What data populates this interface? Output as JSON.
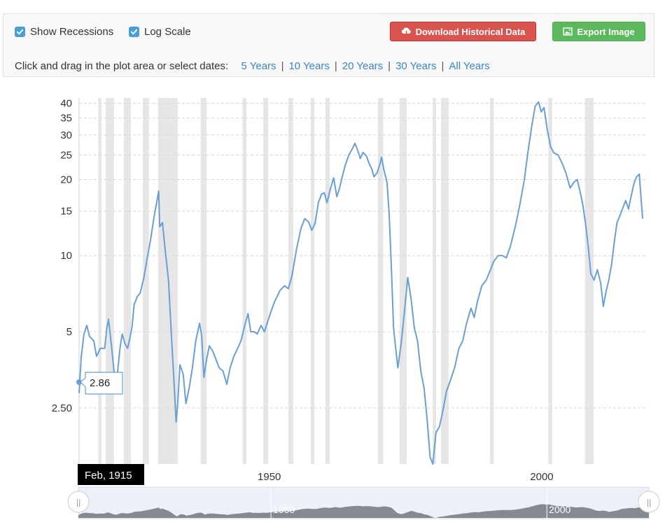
{
  "controls": {
    "show_recessions": {
      "label": "Show Recessions",
      "checked": true
    },
    "log_scale": {
      "label": "Log Scale",
      "checked": true
    },
    "download_button": "Download Historical Data",
    "export_button": "Export Image",
    "date_prompt": "Click and drag in the plot area or select dates:",
    "ranges": [
      "5 Years",
      "10 Years",
      "20 Years",
      "30 Years",
      "All Years"
    ]
  },
  "tooltip": {
    "date": "Feb, 1915",
    "value": "2.86"
  },
  "colors": {
    "line": "#6a9fd4",
    "recession": "#e6e6e6",
    "download": "#d9534f",
    "export": "#5cb85c",
    "link": "#3a87c8",
    "checkbox": "#4b9fd5"
  },
  "chart_data": {
    "type": "line",
    "title": "",
    "xlabel": "",
    "ylabel": "",
    "log_scale": true,
    "xlim": [
      1915.1,
      2018.5
    ],
    "ylim": [
      1.5,
      42
    ],
    "y_ticks": [
      {
        "value": 2.5,
        "label": "2.50"
      },
      {
        "value": 5,
        "label": "5"
      },
      {
        "value": 10,
        "label": "10"
      },
      {
        "value": 15,
        "label": "15"
      },
      {
        "value": 20,
        "label": "20"
      },
      {
        "value": 25,
        "label": "25"
      },
      {
        "value": 30,
        "label": "30"
      },
      {
        "value": 35,
        "label": "35"
      },
      {
        "value": 40,
        "label": "40"
      }
    ],
    "x_ticks": [
      {
        "value": 1950,
        "label": "1950"
      },
      {
        "value": 2000,
        "label": "2000"
      }
    ],
    "navigator_labels": [
      {
        "value": 1950,
        "label": "1950"
      },
      {
        "value": 2000,
        "label": "2000"
      }
    ],
    "recessions": [
      [
        1918.6,
        1919.2
      ],
      [
        1920.0,
        1921.5
      ],
      [
        1923.3,
        1924.6
      ],
      [
        1926.8,
        1927.9
      ],
      [
        1929.6,
        1933.2
      ],
      [
        1937.4,
        1938.5
      ],
      [
        1945.1,
        1945.8
      ],
      [
        1948.9,
        1949.8
      ],
      [
        1953.5,
        1954.4
      ],
      [
        1957.6,
        1958.3
      ],
      [
        1960.3,
        1961.1
      ],
      [
        1969.9,
        1970.9
      ],
      [
        1973.9,
        1975.2
      ],
      [
        1980.0,
        1980.6
      ],
      [
        1981.5,
        1982.9
      ],
      [
        1990.5,
        1991.2
      ],
      [
        2001.2,
        2001.9
      ],
      [
        2007.9,
        2009.5
      ]
    ],
    "series": [
      {
        "values": [
          [
            1915.1,
            2.86
          ],
          [
            1915.5,
            4.0
          ],
          [
            1916.0,
            4.9
          ],
          [
            1916.5,
            5.3
          ],
          [
            1917.0,
            4.8
          ],
          [
            1917.8,
            4.6
          ],
          [
            1918.3,
            4.0
          ],
          [
            1919.0,
            4.3
          ],
          [
            1919.8,
            4.3
          ],
          [
            1920.2,
            5.2
          ],
          [
            1920.5,
            5.6
          ],
          [
            1921.0,
            4.5
          ],
          [
            1921.5,
            3.5
          ],
          [
            1922.0,
            3.2
          ],
          [
            1922.6,
            4.3
          ],
          [
            1923.0,
            4.9
          ],
          [
            1923.5,
            4.5
          ],
          [
            1924.0,
            4.3
          ],
          [
            1924.4,
            4.7
          ],
          [
            1924.8,
            5.2
          ],
          [
            1925.2,
            6.4
          ],
          [
            1925.8,
            6.9
          ],
          [
            1926.3,
            7.1
          ],
          [
            1927.0,
            8.2
          ],
          [
            1927.6,
            9.8
          ],
          [
            1928.2,
            11.5
          ],
          [
            1928.8,
            14.0
          ],
          [
            1929.4,
            16.5
          ],
          [
            1929.7,
            18.0
          ],
          [
            1929.9,
            13.0
          ],
          [
            1930.4,
            13.5
          ],
          [
            1930.9,
            10.5
          ],
          [
            1931.5,
            8.0
          ],
          [
            1932.0,
            5.0
          ],
          [
            1932.5,
            3.2
          ],
          [
            1932.9,
            2.2
          ],
          [
            1933.2,
            2.6
          ],
          [
            1933.6,
            3.7
          ],
          [
            1934.2,
            3.4
          ],
          [
            1934.7,
            2.6
          ],
          [
            1935.3,
            3.0
          ],
          [
            1935.9,
            3.6
          ],
          [
            1936.5,
            4.6
          ],
          [
            1937.2,
            5.4
          ],
          [
            1937.6,
            4.8
          ],
          [
            1938.0,
            3.3
          ],
          [
            1938.5,
            3.9
          ],
          [
            1939.0,
            4.4
          ],
          [
            1939.6,
            4.2
          ],
          [
            1940.2,
            3.9
          ],
          [
            1940.8,
            3.6
          ],
          [
            1941.5,
            3.5
          ],
          [
            1942.2,
            3.1
          ],
          [
            1942.8,
            3.6
          ],
          [
            1943.5,
            4.0
          ],
          [
            1944.2,
            4.3
          ],
          [
            1944.8,
            4.6
          ],
          [
            1945.5,
            5.3
          ],
          [
            1946.1,
            5.9
          ],
          [
            1946.6,
            5.0
          ],
          [
            1947.2,
            5.0
          ],
          [
            1947.8,
            4.9
          ],
          [
            1948.5,
            5.3
          ],
          [
            1949.1,
            5.0
          ],
          [
            1949.6,
            5.4
          ],
          [
            1950.3,
            6.0
          ],
          [
            1951.0,
            6.6
          ],
          [
            1952.0,
            7.3
          ],
          [
            1952.8,
            7.6
          ],
          [
            1953.5,
            7.4
          ],
          [
            1954.2,
            8.4
          ],
          [
            1955.0,
            10.6
          ],
          [
            1955.8,
            12.8
          ],
          [
            1956.5,
            14.0
          ],
          [
            1957.2,
            13.6
          ],
          [
            1957.8,
            12.6
          ],
          [
            1958.4,
            13.4
          ],
          [
            1959.0,
            16.2
          ],
          [
            1959.6,
            17.5
          ],
          [
            1960.1,
            17.7
          ],
          [
            1960.6,
            16.2
          ],
          [
            1961.2,
            18.3
          ],
          [
            1961.8,
            20.3
          ],
          [
            1962.4,
            17.1
          ],
          [
            1962.9,
            18.5
          ],
          [
            1963.5,
            21.0
          ],
          [
            1964.0,
            23.0
          ],
          [
            1964.6,
            25.0
          ],
          [
            1965.3,
            26.6
          ],
          [
            1965.7,
            27.8
          ],
          [
            1966.2,
            26.2
          ],
          [
            1966.7,
            24.2
          ],
          [
            1967.2,
            25.6
          ],
          [
            1967.8,
            24.8
          ],
          [
            1968.3,
            23.2
          ],
          [
            1968.8,
            22.0
          ],
          [
            1969.2,
            20.5
          ],
          [
            1969.8,
            21.3
          ],
          [
            1970.3,
            23.0
          ],
          [
            1970.6,
            24.5
          ],
          [
            1971.0,
            22.0
          ],
          [
            1971.6,
            19.5
          ],
          [
            1972.0,
            14.5
          ],
          [
            1972.4,
            9.0
          ],
          [
            1972.8,
            5.2
          ],
          [
            1973.2,
            4.3
          ],
          [
            1973.6,
            3.6
          ],
          [
            1974.2,
            4.5
          ],
          [
            1974.8,
            6.0
          ],
          [
            1975.4,
            8.2
          ],
          [
            1976.0,
            6.8
          ],
          [
            1976.6,
            5.2
          ],
          [
            1977.2,
            4.6
          ],
          [
            1977.8,
            3.5
          ],
          [
            1978.4,
            3.0
          ],
          [
            1979.0,
            2.2
          ],
          [
            1979.5,
            1.6
          ],
          [
            1980.0,
            1.5
          ],
          [
            1980.6,
            2.0
          ],
          [
            1981.2,
            2.1
          ],
          [
            1981.8,
            2.4
          ],
          [
            1982.5,
            2.9
          ],
          [
            1983.2,
            3.2
          ],
          [
            1984.0,
            3.6
          ],
          [
            1984.8,
            4.3
          ],
          [
            1985.5,
            4.6
          ],
          [
            1986.2,
            5.4
          ],
          [
            1987.0,
            6.2
          ],
          [
            1987.6,
            5.7
          ],
          [
            1988.2,
            6.6
          ],
          [
            1989.0,
            7.6
          ],
          [
            1989.8,
            8.0
          ],
          [
            1990.5,
            8.7
          ],
          [
            1991.2,
            9.5
          ],
          [
            1992.0,
            10.0
          ],
          [
            1992.8,
            10.0
          ],
          [
            1993.5,
            9.8
          ],
          [
            1994.3,
            11.0
          ],
          [
            1995.2,
            13.2
          ],
          [
            1996.0,
            16.0
          ],
          [
            1996.8,
            20.0
          ],
          [
            1997.5,
            26.0
          ],
          [
            1998.2,
            33.0
          ],
          [
            1998.8,
            39.0
          ],
          [
            1999.4,
            40.5
          ],
          [
            1999.9,
            37.0
          ],
          [
            2000.4,
            38.5
          ],
          [
            2001.0,
            31.5
          ],
          [
            2001.6,
            27.0
          ],
          [
            2002.2,
            25.5
          ],
          [
            2003.0,
            25.0
          ],
          [
            2003.8,
            23.0
          ],
          [
            2004.5,
            21.0
          ],
          [
            2005.2,
            18.5
          ],
          [
            2005.9,
            19.5
          ],
          [
            2006.5,
            20.0
          ],
          [
            2007.0,
            18.0
          ],
          [
            2007.5,
            16.0
          ],
          [
            2008.0,
            13.5
          ],
          [
            2008.5,
            11.0
          ],
          [
            2009.0,
            8.5
          ],
          [
            2009.6,
            8.0
          ],
          [
            2010.2,
            8.8
          ],
          [
            2010.8,
            7.8
          ],
          [
            2011.3,
            6.3
          ],
          [
            2011.8,
            7.2
          ],
          [
            2012.3,
            8.0
          ],
          [
            2012.8,
            9.2
          ],
          [
            2013.3,
            11.3
          ],
          [
            2013.8,
            13.5
          ],
          [
            2014.4,
            14.5
          ],
          [
            2014.9,
            15.5
          ],
          [
            2015.4,
            16.5
          ],
          [
            2015.9,
            15.3
          ],
          [
            2016.4,
            17.2
          ],
          [
            2016.9,
            19.2
          ],
          [
            2017.4,
            20.5
          ],
          [
            2017.9,
            21.0
          ],
          [
            2018.2,
            17.0
          ],
          [
            2018.5,
            14.0
          ]
        ]
      }
    ]
  }
}
